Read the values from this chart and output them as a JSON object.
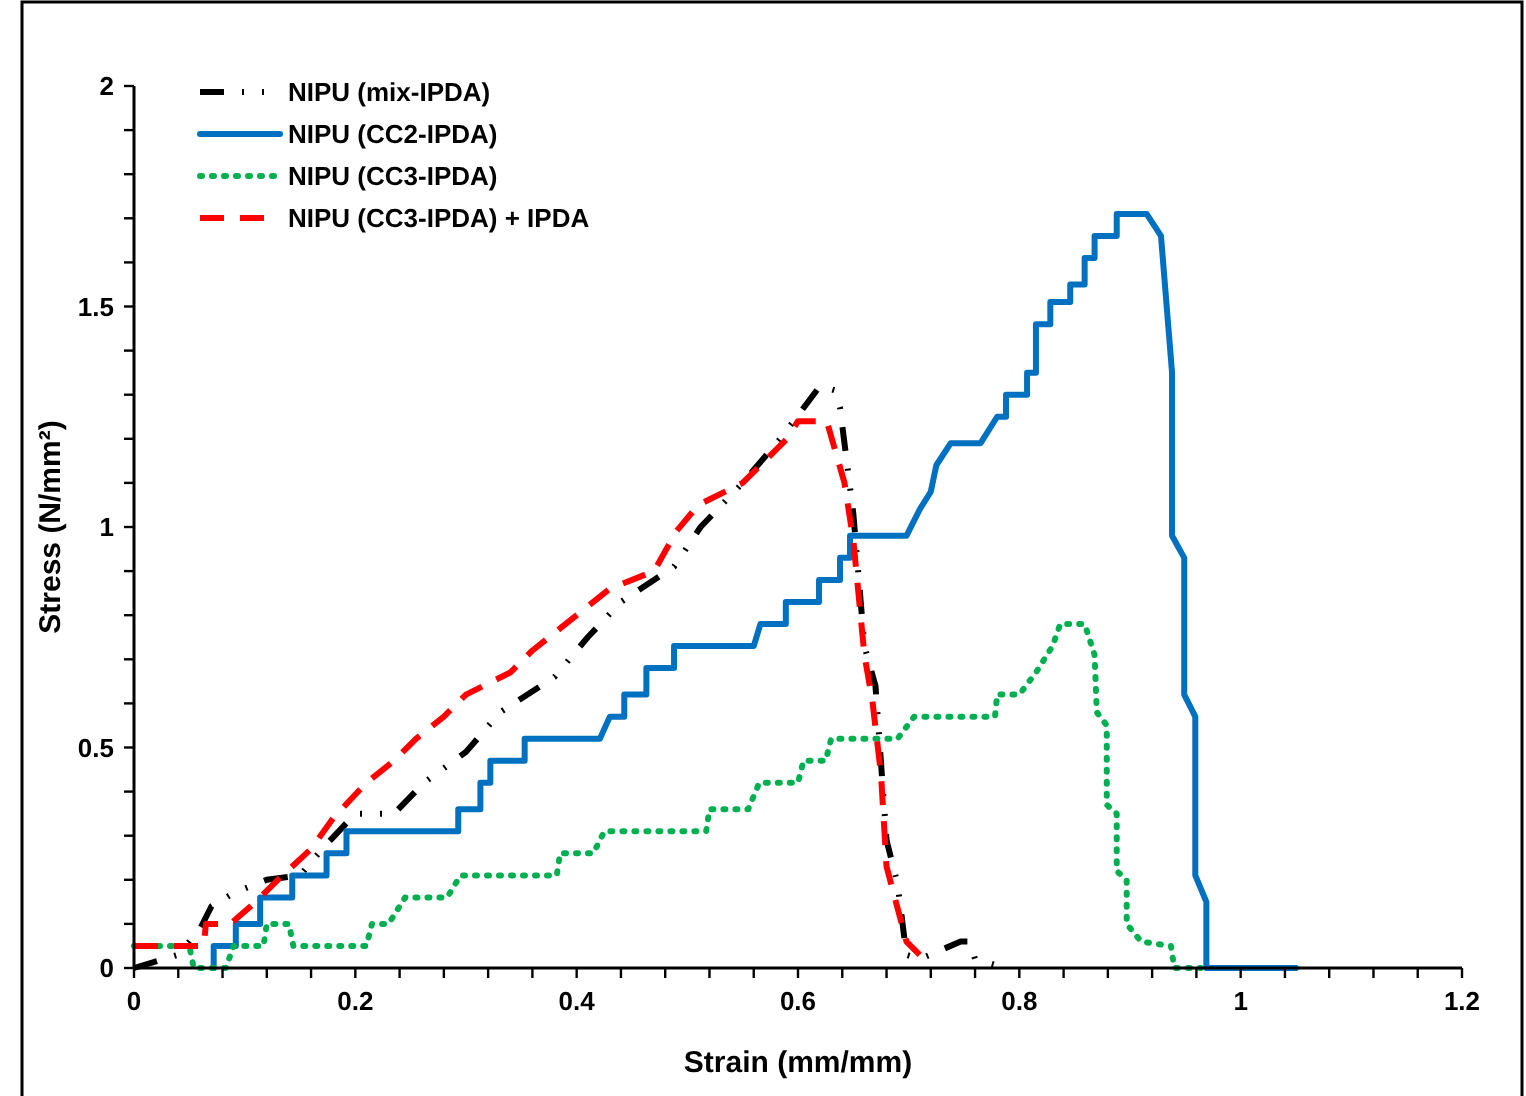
{
  "chart_data": {
    "type": "line",
    "xlabel": "Strain (mm/mm)",
    "ylabel": "Stress (N/mm²)",
    "xlim": [
      0,
      1.2
    ],
    "ylim": [
      0,
      2
    ],
    "xticks": [
      0,
      {
        "value": 0.04,
        "label": null
      },
      {
        "value": 0.08,
        "label": null
      },
      {
        "value": 0.12,
        "label": null
      },
      {
        "value": 0.16,
        "label": null
      },
      0.2,
      {
        "value": 0.24,
        "label": null
      },
      {
        "value": 0.28,
        "label": null
      },
      {
        "value": 0.32,
        "label": null
      },
      {
        "value": 0.36,
        "label": null
      },
      0.4,
      {
        "value": 0.44,
        "label": null
      },
      {
        "value": 0.48,
        "label": null
      },
      {
        "value": 0.52,
        "label": null
      },
      {
        "value": 0.56,
        "label": null
      },
      0.6,
      {
        "value": 0.64,
        "label": null
      },
      {
        "value": 0.68,
        "label": null
      },
      {
        "value": 0.72,
        "label": null
      },
      {
        "value": 0.76,
        "label": null
      },
      0.8,
      {
        "value": 0.84,
        "label": null
      },
      {
        "value": 0.88,
        "label": null
      },
      {
        "value": 0.92,
        "label": null
      },
      {
        "value": 0.96,
        "label": null
      },
      1,
      {
        "value": 1.04,
        "label": null
      },
      {
        "value": 1.08,
        "label": null
      },
      {
        "value": 1.12,
        "label": null
      },
      {
        "value": 1.16,
        "label": null
      },
      1.2
    ],
    "yticks": [
      0,
      {
        "value": 0.1,
        "label": null
      },
      {
        "value": 0.2,
        "label": null
      },
      {
        "value": 0.3,
        "label": null
      },
      {
        "value": 0.4,
        "label": null
      },
      0.5,
      {
        "value": 0.6,
        "label": null
      },
      {
        "value": 0.7,
        "label": null
      },
      {
        "value": 0.8,
        "label": null
      },
      {
        "value": 0.9,
        "label": null
      },
      1,
      {
        "value": 1.1,
        "label": null
      },
      {
        "value": 1.2,
        "label": null
      },
      {
        "value": 1.3,
        "label": null
      },
      {
        "value": 1.4,
        "label": null
      },
      1.5,
      {
        "value": 1.6,
        "label": null
      },
      {
        "value": 1.7,
        "label": null
      },
      {
        "value": 1.8,
        "label": null
      },
      {
        "value": 1.9,
        "label": null
      },
      2
    ],
    "grid": false,
    "legend": "top left",
    "series": [
      {
        "name": "NIPU (mix-IPDA)",
        "color": "#000000",
        "line_style": "dashdot",
        "x": [
          0,
          0.04,
          0.06,
          0.07,
          0.09,
          0.12,
          0.15,
          0.17,
          0.2,
          0.235,
          0.262,
          0.3,
          0.331,
          0.38,
          0.41,
          0.44,
          0.488,
          0.512,
          0.55,
          0.584,
          0.62,
          0.633,
          0.638,
          0.65,
          0.66,
          0.67,
          0.68,
          0.69,
          0.698,
          0.71,
          0.747,
          0.755,
          0.76,
          0.788
        ],
        "values": [
          0,
          0.03,
          0.09,
          0.14,
          0.17,
          0.2,
          0.21,
          0.27,
          0.35,
          0.35,
          0.42,
          0.49,
          0.58,
          0.66,
          0.75,
          0.83,
          0.91,
          1,
          1.1,
          1.2,
          1.32,
          1.31,
          1.27,
          1.03,
          0.73,
          0.64,
          0.29,
          0.19,
          0.03,
          0.02,
          0.06,
          0.06,
          0.02,
          0
        ]
      },
      {
        "name": "NIPU (CC2-IPDA)",
        "color": "#0070c0",
        "line_style": "solid",
        "x": [
          0.072,
          0.072,
          0.092,
          0.092,
          0.114,
          0.114,
          0.143,
          0.143,
          0.174,
          0.174,
          0.192,
          0.192,
          0.293,
          0.293,
          0.313,
          0.313,
          0.322,
          0.322,
          0.353,
          0.353,
          0.421,
          0.43,
          0.443,
          0.443,
          0.463,
          0.463,
          0.488,
          0.488,
          0.56,
          0.566,
          0.589,
          0.589,
          0.619,
          0.619,
          0.638,
          0.638,
          0.647,
          0.647,
          0.698,
          0.71,
          0.72,
          0.72,
          0.725,
          0.725,
          0.738,
          0.738,
          0.765,
          0.78,
          0.788,
          0.788,
          0.807,
          0.807,
          0.815,
          0.815,
          0.828,
          0.828,
          0.846,
          0.846,
          0.859,
          0.859,
          0.868,
          0.868,
          0.888,
          0.888,
          0.915,
          0.928,
          0.938,
          0.938,
          0.949,
          0.949,
          0.959,
          0.959,
          0.969,
          0.969,
          1.05
        ],
        "values": [
          0,
          0.05,
          0.05,
          0.1,
          0.1,
          0.16,
          0.16,
          0.21,
          0.21,
          0.26,
          0.26,
          0.31,
          0.31,
          0.36,
          0.36,
          0.42,
          0.42,
          0.47,
          0.47,
          0.52,
          0.52,
          0.57,
          0.57,
          0.62,
          0.62,
          0.68,
          0.68,
          0.73,
          0.73,
          0.78,
          0.78,
          0.83,
          0.83,
          0.88,
          0.88,
          0.93,
          0.93,
          0.98,
          0.98,
          1.04,
          1.08,
          1.08,
          1.14,
          1.14,
          1.19,
          1.19,
          1.19,
          1.25,
          1.25,
          1.3,
          1.3,
          1.35,
          1.35,
          1.46,
          1.46,
          1.51,
          1.51,
          1.55,
          1.55,
          1.61,
          1.61,
          1.66,
          1.66,
          1.71,
          1.71,
          1.66,
          1.35,
          0.98,
          0.93,
          0.62,
          0.57,
          0.21,
          0.15,
          0,
          0
        ]
      },
      {
        "name": "NIPU (CC3-IPDA)",
        "color": "#00b050",
        "line_style": "dotted",
        "x": [
          0,
          0.05,
          0.054,
          0.083,
          0.09,
          0.117,
          0.12,
          0.14,
          0.144,
          0.21,
          0.215,
          0.23,
          0.245,
          0.283,
          0.295,
          0.382,
          0.385,
          0.415,
          0.425,
          0.517,
          0.52,
          0.555,
          0.565,
          0.6,
          0.605,
          0.625,
          0.63,
          0.69,
          0.705,
          0.778,
          0.78,
          0.8,
          0.815,
          0.83,
          0.837,
          0.859,
          0.868,
          0.87,
          0.879,
          0.879,
          0.888,
          0.888,
          0.897,
          0.897,
          0.91,
          0.937,
          0.94,
          0.964
        ],
        "values": [
          0.05,
          0.05,
          0,
          0,
          0.05,
          0.05,
          0.1,
          0.1,
          0.05,
          0.05,
          0.1,
          0.1,
          0.16,
          0.16,
          0.21,
          0.21,
          0.26,
          0.26,
          0.31,
          0.31,
          0.36,
          0.36,
          0.42,
          0.42,
          0.47,
          0.47,
          0.52,
          0.52,
          0.57,
          0.57,
          0.62,
          0.62,
          0.67,
          0.73,
          0.78,
          0.78,
          0.71,
          0.58,
          0.55,
          0.37,
          0.35,
          0.22,
          0.2,
          0.1,
          0.06,
          0.05,
          0,
          0
        ]
      },
      {
        "name": "NIPU (CC3-IPDA) + IPDA",
        "color": "#ff0000",
        "line_style": "dashed",
        "x": [
          0,
          0.063,
          0.065,
          0.087,
          0.11,
          0.13,
          0.16,
          0.18,
          0.21,
          0.235,
          0.255,
          0.28,
          0.3,
          0.34,
          0.36,
          0.385,
          0.41,
          0.43,
          0.47,
          0.49,
          0.51,
          0.55,
          0.57,
          0.59,
          0.6,
          0.626,
          0.642,
          0.65,
          0.66,
          0.667,
          0.675,
          0.68,
          0.698,
          0.71
        ],
        "values": [
          0.05,
          0.05,
          0.1,
          0.1,
          0.15,
          0.2,
          0.27,
          0.34,
          0.42,
          0.47,
          0.52,
          0.57,
          0.62,
          0.67,
          0.72,
          0.77,
          0.82,
          0.86,
          0.9,
          0.99,
          1.05,
          1.1,
          1.15,
          1.2,
          1.24,
          1.24,
          1.1,
          0.97,
          0.71,
          0.61,
          0.44,
          0.23,
          0.06,
          0.03
        ]
      }
    ]
  }
}
